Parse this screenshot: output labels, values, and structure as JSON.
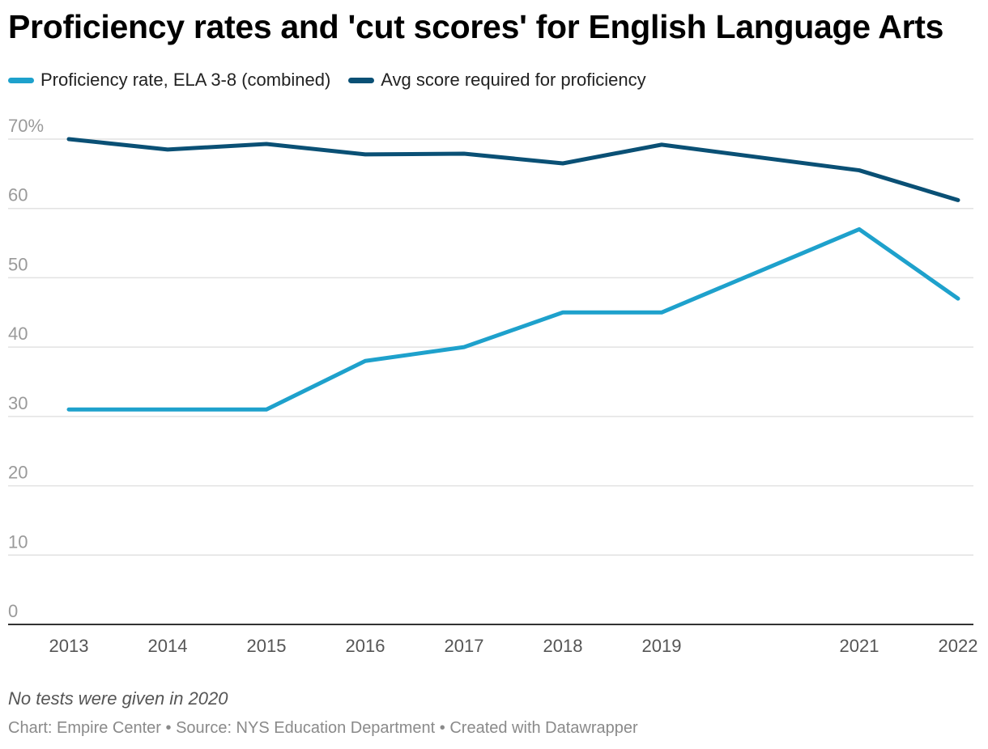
{
  "title": "Proficiency rates and 'cut scores' for English Language Arts",
  "note": "No tests were given in 2020",
  "footer": "Chart: Empire Center • Source: NYS Education Department • Created with Datawrapper",
  "chart_data": {
    "type": "line",
    "title": "Proficiency rates and 'cut scores' for English Language Arts",
    "xlabel": "",
    "ylabel": "",
    "x": [
      2013,
      2014,
      2015,
      2016,
      2017,
      2018,
      2019,
      2021,
      2022
    ],
    "xlim": [
      2013,
      2022
    ],
    "ylim": [
      0,
      70
    ],
    "y_ticks": [
      0,
      10,
      20,
      30,
      40,
      50,
      60,
      70
    ],
    "y_tick_labels": [
      "0",
      "10",
      "20",
      "30",
      "40",
      "50",
      "60",
      "70%"
    ],
    "x_tick_labels": [
      "2013",
      "2014",
      "2015",
      "2016",
      "2017",
      "2018",
      "2019",
      "2021",
      "2022"
    ],
    "grid": true,
    "legend_position": "top-left",
    "series": [
      {
        "name": "Proficiency rate, ELA 3-8 (combined)",
        "color": "#1ea1cc",
        "values": [
          31,
          31,
          31,
          38,
          40,
          45,
          45,
          57,
          47
        ]
      },
      {
        "name": "Avg score required for proficiency",
        "color": "#0a5075",
        "values": [
          70,
          68.5,
          69.3,
          67.8,
          67.9,
          66.5,
          69.2,
          65.5,
          61.2
        ]
      }
    ]
  }
}
